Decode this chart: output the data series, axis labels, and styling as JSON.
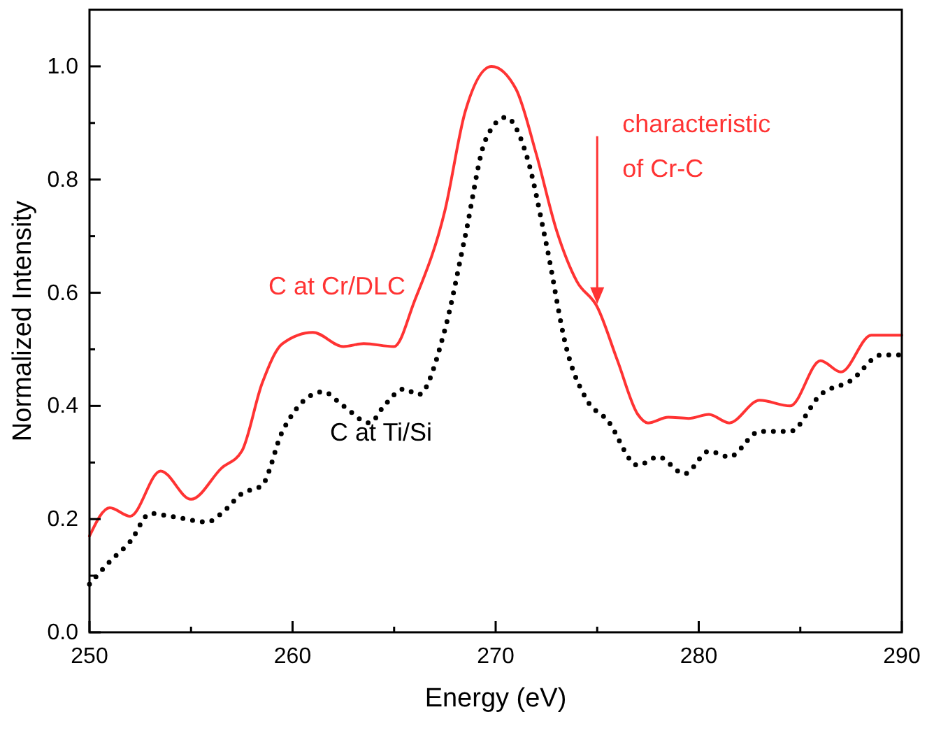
{
  "chart_data": {
    "type": "line",
    "xlabel": "Energy (eV)",
    "ylabel": "Normalized Intensity",
    "xlim": [
      250,
      290
    ],
    "ylim": [
      0,
      1.1
    ],
    "xticks": [
      250,
      {
        "value": 255,
        "label": null
      },
      260,
      {
        "value": 265,
        "label": null
      },
      270,
      {
        "value": 275,
        "label": null
      },
      280,
      {
        "value": 285,
        "label": null
      },
      290
    ],
    "yticks": [
      {
        "value": 0,
        "label": "0.0"
      },
      {
        "value": 0.1,
        "label": null
      },
      0.2,
      {
        "value": 0.3,
        "label": null
      },
      0.4,
      {
        "value": 0.5,
        "label": null
      },
      0.6,
      {
        "value": 0.7,
        "label": null
      },
      0.8,
      {
        "value": 0.9,
        "label": null
      },
      {
        "value": 1,
        "label": "1.0"
      }
    ],
    "grid": false,
    "legend": false,
    "marker": "none",
    "series": [
      {
        "name": "C at Cr/DLC",
        "color": "#ff3333",
        "line_style": "solid",
        "x": [
          250,
          251,
          252,
          253.5,
          255,
          256.5,
          257.5,
          258.5,
          259.5,
          261,
          262.5,
          263.5,
          265,
          266,
          267.5,
          268.5,
          269.8,
          271,
          272,
          273,
          274,
          275,
          276,
          277,
          277.5,
          278.5,
          279.5,
          280.5,
          281.5,
          283,
          284.5,
          286,
          287,
          288.5,
          290
        ],
        "values": [
          0.17,
          0.22,
          0.205,
          0.285,
          0.235,
          0.29,
          0.32,
          0.44,
          0.51,
          0.53,
          0.505,
          0.51,
          0.505,
          0.585,
          0.745,
          0.92,
          1.0,
          0.96,
          0.845,
          0.71,
          0.62,
          0.575,
          0.48,
          0.385,
          0.37,
          0.38,
          0.378,
          0.385,
          0.37,
          0.41,
          0.4,
          0.48,
          0.46,
          0.525,
          0.525
        ]
      },
      {
        "name": "C at Ti/Si",
        "color": "#000000",
        "line_style": "dotted",
        "x": [
          250,
          251,
          252,
          253,
          254,
          255.8,
          256.5,
          257.5,
          258.5,
          259.5,
          261.5,
          262.5,
          263.8,
          264.5,
          265.5,
          266.2,
          267.5,
          268.5,
          269.5,
          270.5,
          271.5,
          272.5,
          273.5,
          274.5,
          275.5,
          277,
          278,
          279.3,
          280.5,
          281.5,
          283,
          284.5,
          286,
          287.5,
          289,
          290
        ],
        "values": [
          0.085,
          0.125,
          0.16,
          0.21,
          0.205,
          0.195,
          0.21,
          0.245,
          0.26,
          0.355,
          0.425,
          0.4,
          0.37,
          0.4,
          0.43,
          0.42,
          0.535,
          0.7,
          0.87,
          0.91,
          0.845,
          0.685,
          0.5,
          0.41,
          0.375,
          0.295,
          0.31,
          0.28,
          0.32,
          0.31,
          0.355,
          0.355,
          0.42,
          0.445,
          0.49,
          0.49
        ]
      }
    ],
    "annotations": [
      "characteristic\nof Cr-C"
    ]
  }
}
